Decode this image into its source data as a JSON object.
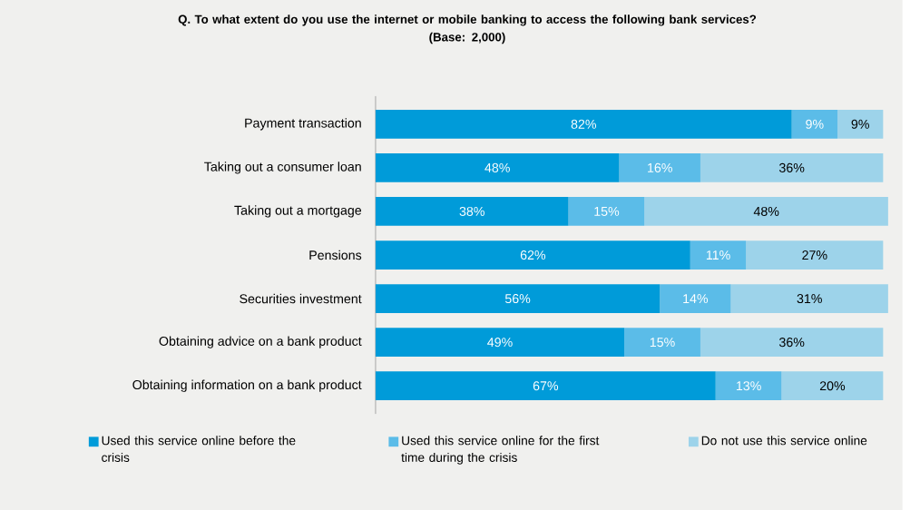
{
  "chart_data": {
    "type": "bar",
    "orientation": "horizontal",
    "stacked": true,
    "title": "Q. To what extent do you use the internet or mobile banking to access the following bank services?",
    "subtitle": "(Base: 2,000)",
    "categories": [
      "Payment transaction",
      "Taking out a consumer loan",
      "Taking out a mortgage",
      "Pensions",
      "Securities investment",
      "Obtaining advice on a bank product",
      "Obtaining information on a bank product"
    ],
    "series": [
      {
        "name": "Used this service online before the crisis",
        "color": "#009bd9",
        "values": [
          82,
          48,
          38,
          62,
          56,
          49,
          67
        ],
        "value_labels": [
          "82%",
          "48%",
          "38%",
          "62%",
          "56%",
          "49%",
          "67%"
        ]
      },
      {
        "name": "Used this service online for the first time during the crisis",
        "color": "#5bbce8",
        "values": [
          9,
          16,
          15,
          11,
          14,
          15,
          13
        ],
        "value_labels": [
          "9%",
          "16%",
          "15%",
          "11%",
          "14%",
          "15%",
          "13%"
        ]
      },
      {
        "name": "Do not use this service online",
        "color": "#9dd3ea",
        "values": [
          9,
          36,
          48,
          27,
          31,
          36,
          20
        ],
        "value_labels": [
          "9%",
          "36%",
          "48%",
          "27%",
          "31%",
          "36%",
          "20%"
        ]
      }
    ],
    "tick_labels": "y",
    "legend": "bottom",
    "grid": false
  }
}
